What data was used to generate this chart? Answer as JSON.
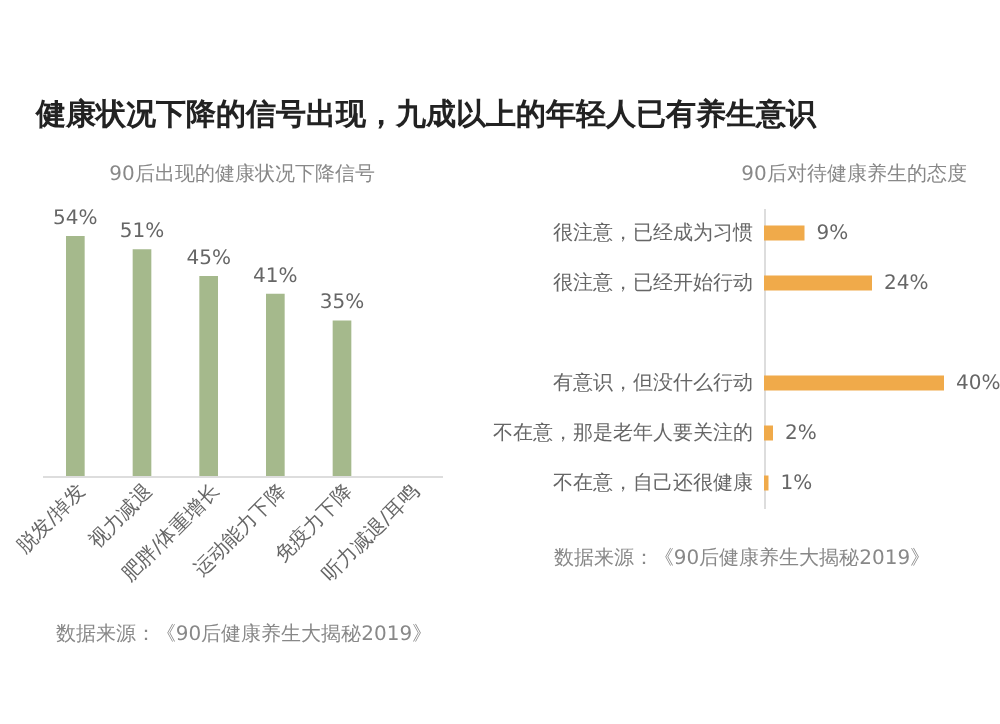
{
  "chart_data": [
    {
      "type": "other",
      "title": "健康状况下降的信号出现，九成以上的年轻人已有养生意识"
    },
    {
      "type": "bar",
      "title": "90后出现的健康状况下降信号",
      "categories": [
        "脱发/掉发",
        "视力减退",
        "肥胖/体重增长",
        "运动能力下降",
        "免疫力下降",
        "听力减退/耳鸣"
      ],
      "values": [
        54,
        51,
        45,
        41,
        35,
        null
      ],
      "value_labels": [
        "54%",
        "51%",
        "45%",
        "41%",
        "35%",
        null
      ],
      "color": "#a5b98c",
      "annotations": [
        "数据来源：《90后健康养生大揭秘2019》"
      ]
    },
    {
      "type": "bar",
      "orientation": "horizontal",
      "title": "90后对待健康养生的态度",
      "categories": [
        "很注意，已经成为习惯",
        "很注意，已经开始行动",
        null,
        "有意识，但没什么行动",
        "不在意，那是老年人要关注的",
        "不在意，自己还很健康"
      ],
      "values": [
        9,
        24,
        null,
        40,
        2,
        1
      ],
      "value_labels": [
        "9%",
        "24%",
        null,
        "40%",
        "2%",
        "1%"
      ],
      "color": "#f0aa4a",
      "annotations": [
        "数据来源：《90后健康养生大揭秘2019》"
      ]
    }
  ]
}
